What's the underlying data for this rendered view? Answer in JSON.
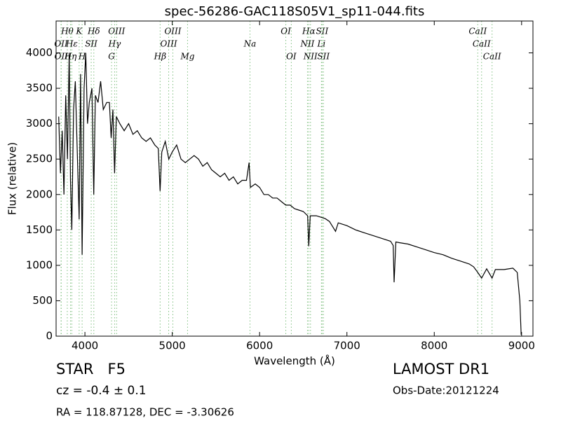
{
  "chart_data": {
    "type": "line",
    "title": "spec-56286-GAC118S05V1_sp11-044.fits",
    "x_label": "Wavelength (Å)",
    "y_label": "Flux (relative)",
    "xlim": [
      3670,
      9130
    ],
    "ylim": [
      0,
      4450
    ],
    "xticks": [
      4000,
      5000,
      6000,
      7000,
      8000,
      9000
    ],
    "yticks": [
      0,
      500,
      1000,
      1500,
      2000,
      2500,
      3000,
      3500,
      4000
    ],
    "series": [
      {
        "name": "flux",
        "color": "#000000",
        "x": [
          3700,
          3720,
          3740,
          3760,
          3780,
          3800,
          3820,
          3835,
          3850,
          3870,
          3890,
          3910,
          3934,
          3950,
          3968,
          3990,
          4010,
          4030,
          4050,
          4080,
          4101,
          4120,
          4150,
          4180,
          4210,
          4250,
          4280,
          4300,
          4320,
          4340,
          4360,
          4400,
          4450,
          4500,
          4550,
          4600,
          4650,
          4700,
          4750,
          4800,
          4840,
          4861,
          4880,
          4920,
          4960,
          5000,
          5050,
          5100,
          5150,
          5200,
          5250,
          5300,
          5350,
          5400,
          5450,
          5500,
          5550,
          5600,
          5650,
          5700,
          5750,
          5800,
          5850,
          5880,
          5895,
          5950,
          6000,
          6050,
          6100,
          6150,
          6200,
          6250,
          6300,
          6350,
          6400,
          6450,
          6500,
          6550,
          6563,
          6580,
          6650,
          6700,
          6750,
          6800,
          6870,
          6900,
          7000,
          7100,
          7200,
          7300,
          7400,
          7500,
          7530,
          7540,
          7560,
          7600,
          7700,
          7800,
          7900,
          8000,
          8100,
          8200,
          8300,
          8400,
          8450,
          8498,
          8542,
          8600,
          8662,
          8700,
          8800,
          8900,
          8950,
          8980,
          8995
        ],
        "values": [
          3100,
          2300,
          2900,
          2000,
          3400,
          2500,
          4000,
          2200,
          1500,
          3200,
          3600,
          2700,
          1650,
          3700,
          1150,
          3500,
          4000,
          3000,
          3300,
          3500,
          2000,
          3400,
          3300,
          3600,
          3200,
          3300,
          3300,
          2800,
          3200,
          2300,
          3100,
          3000,
          2900,
          3000,
          2850,
          2900,
          2800,
          2750,
          2800,
          2700,
          2650,
          2050,
          2600,
          2750,
          2500,
          2600,
          2700,
          2500,
          2450,
          2500,
          2550,
          2500,
          2400,
          2450,
          2350,
          2300,
          2250,
          2300,
          2200,
          2250,
          2150,
          2200,
          2200,
          2450,
          2100,
          2150,
          2100,
          2000,
          2000,
          1950,
          1950,
          1900,
          1850,
          1850,
          1800,
          1780,
          1760,
          1700,
          1270,
          1700,
          1700,
          1680,
          1660,
          1620,
          1480,
          1600,
          1560,
          1500,
          1460,
          1420,
          1380,
          1340,
          1280,
          760,
          1330,
          1320,
          1300,
          1260,
          1220,
          1180,
          1150,
          1100,
          1060,
          1020,
          980,
          900,
          820,
          950,
          820,
          940,
          940,
          960,
          900,
          500,
          20
        ]
      }
    ],
    "line_color": "#7fbf7f",
    "line_labels": [
      [
        {
          "label": "Hθ",
          "wavelength": 3798
        },
        {
          "label": "K",
          "wavelength": 3934
        },
        {
          "label": "Hδ",
          "wavelength": 4102
        },
        {
          "label": "OIII",
          "wavelength": 4363
        },
        {
          "label": "OIII",
          "wavelength": 5007
        },
        {
          "label": "OI",
          "wavelength": 6300
        },
        {
          "label": "Hα",
          "wavelength": 6563
        },
        {
          "label": "SII",
          "wavelength": 6716
        },
        {
          "label": "CaII",
          "wavelength": 8498
        }
      ],
      [
        {
          "label": "OII",
          "wavelength": 3727
        },
        {
          "label": "Hε",
          "wavelength": 3850
        },
        {
          "label": "SII",
          "wavelength": 4072
        },
        {
          "label": "Hγ",
          "wavelength": 4340
        },
        {
          "label": "OIII",
          "wavelength": 4959
        },
        {
          "label": "Na",
          "wavelength": 5890
        },
        {
          "label": "NII",
          "wavelength": 6548
        },
        {
          "label": "Li",
          "wavelength": 6708
        },
        {
          "label": "CaII",
          "wavelength": 8542
        }
      ],
      [
        {
          "label": "OII",
          "wavelength": 3729
        },
        {
          "label": "Hη",
          "wavelength": 3835
        },
        {
          "label": "H",
          "wavelength": 3968
        },
        {
          "label": "G",
          "wavelength": 4305
        },
        {
          "label": "Hβ",
          "wavelength": 4861
        },
        {
          "label": "Mg",
          "wavelength": 5175
        },
        {
          "label": "OI",
          "wavelength": 6363
        },
        {
          "label": "NII",
          "wavelength": 6583
        },
        {
          "label": "SII",
          "wavelength": 6731
        },
        {
          "label": "CaII",
          "wavelength": 8662
        }
      ]
    ]
  },
  "footer": {
    "class": "STAR   F5",
    "redshift": "cz = -0.4 ± 0.1",
    "coords": "RA = 118.87128, DEC = -3.30626",
    "release": "LAMOST DR1",
    "obs_date": "Obs-Date:20121224"
  }
}
